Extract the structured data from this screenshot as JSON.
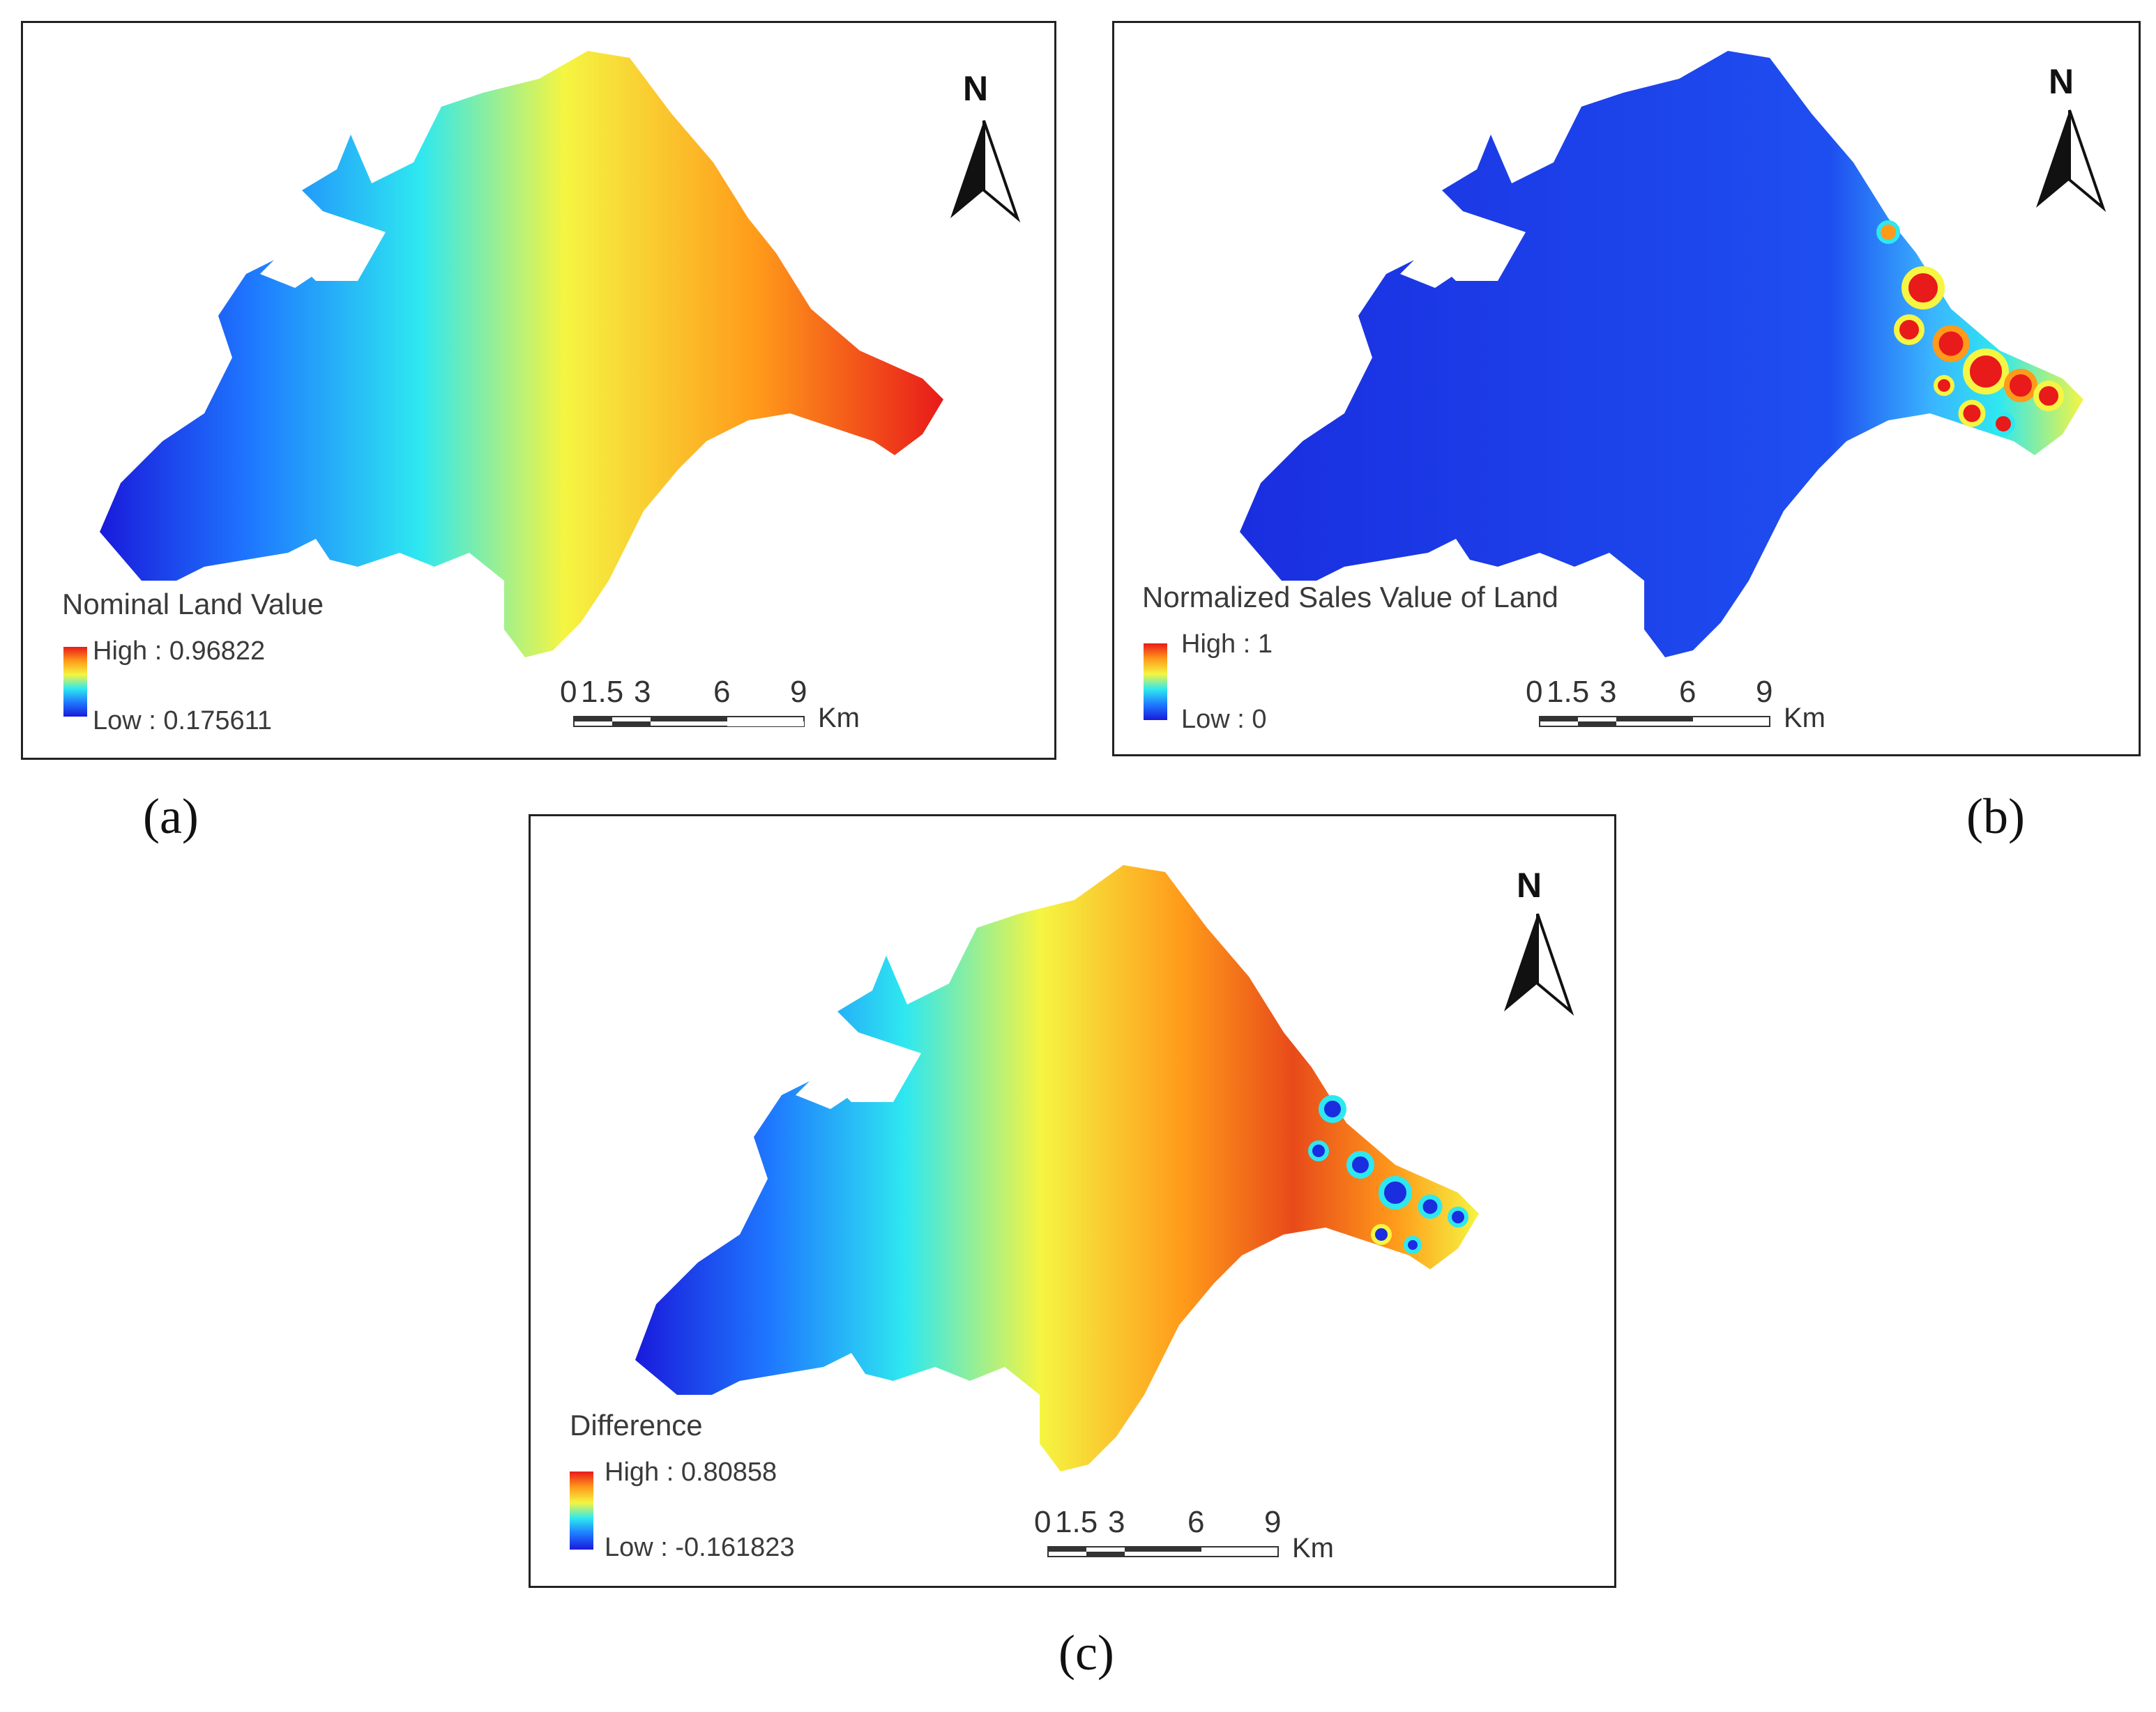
{
  "colors": {
    "ramp": [
      "#1a1adb",
      "#1e78ff",
      "#2ee8f0",
      "#f5f542",
      "#ff9a1a",
      "#e81a1a"
    ],
    "frame": "#222222"
  },
  "panels": [
    {
      "id": "a",
      "label": "(a)",
      "legend": {
        "title": "Nominal Land Value",
        "high": "High : 0.96822",
        "low": "Low : 0.175611"
      },
      "scale": {
        "ticks": [
          "0",
          "1.5",
          "3",
          "6",
          "9"
        ],
        "unit": "Km"
      },
      "north": "N",
      "map_style": "west-low-east-high gradient"
    },
    {
      "id": "b",
      "label": "(b)",
      "legend": {
        "title": "Normalized Sales Value of Land",
        "high": "High : 1",
        "low": "Low : 0"
      },
      "scale": {
        "ticks": [
          "0",
          "1.5",
          "3",
          "6",
          "9"
        ],
        "unit": "Km"
      },
      "north": "N",
      "map_style": "mostly low with high hotspots along east coast"
    },
    {
      "id": "c",
      "label": "(c)",
      "legend": {
        "title": "Difference",
        "high": "High : 0.80858",
        "low": "Low : -0.161823"
      },
      "scale": {
        "ticks": [
          "0",
          "1.5",
          "3",
          "6",
          "9"
        ],
        "unit": "Km"
      },
      "north": "N",
      "map_style": "west-low center-high with low spots at east coast"
    }
  ]
}
